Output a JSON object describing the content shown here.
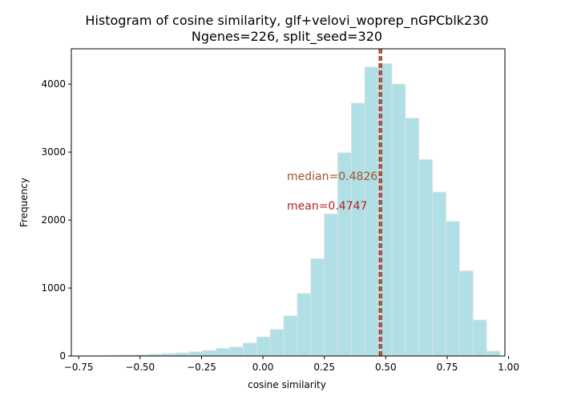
{
  "chart_data": {
    "type": "bar",
    "title": "Histogram of cosine similarity, glf+velovi_woprep_nGPCblk230",
    "subtitle": "Ngenes=226, split_seed=320",
    "xlabel": "cosine similarity",
    "ylabel": "Frequency",
    "xlim": [
      -0.78,
      0.985
    ],
    "ylim": [
      0,
      4520
    ],
    "x_ticks": [
      -0.75,
      -0.5,
      -0.25,
      0.0,
      0.25,
      0.5,
      0.75,
      1.0
    ],
    "x_tick_labels": [
      "−0.75",
      "−0.50",
      "−0.25",
      "0.00",
      "0.25",
      "0.50",
      "0.75",
      "1.00"
    ],
    "y_ticks": [
      0,
      1000,
      2000,
      3000,
      4000
    ],
    "y_tick_labels": [
      "0",
      "1000",
      "2000",
      "3000",
      "4000"
    ],
    "bins": [
      {
        "x0": -0.74,
        "x1": -0.685,
        "value": 3
      },
      {
        "x0": -0.685,
        "x1": -0.63,
        "value": 5
      },
      {
        "x0": -0.63,
        "x1": -0.575,
        "value": 8
      },
      {
        "x0": -0.575,
        "x1": -0.52,
        "value": 12
      },
      {
        "x0": -0.52,
        "x1": -0.465,
        "value": 18
      },
      {
        "x0": -0.465,
        "x1": -0.41,
        "value": 25
      },
      {
        "x0": -0.41,
        "x1": -0.355,
        "value": 35
      },
      {
        "x0": -0.355,
        "x1": -0.3,
        "value": 45
      },
      {
        "x0": -0.3,
        "x1": -0.245,
        "value": 60
      },
      {
        "x0": -0.245,
        "x1": -0.19,
        "value": 80
      },
      {
        "x0": -0.19,
        "x1": -0.135,
        "value": 110
      },
      {
        "x0": -0.135,
        "x1": -0.08,
        "value": 130
      },
      {
        "x0": -0.08,
        "x1": -0.025,
        "value": 190
      },
      {
        "x0": -0.025,
        "x1": 0.03,
        "value": 280
      },
      {
        "x0": 0.03,
        "x1": 0.085,
        "value": 390
      },
      {
        "x0": 0.085,
        "x1": 0.14,
        "value": 590
      },
      {
        "x0": 0.14,
        "x1": 0.195,
        "value": 920
      },
      {
        "x0": 0.195,
        "x1": 0.25,
        "value": 1430
      },
      {
        "x0": 0.25,
        "x1": 0.305,
        "value": 2090
      },
      {
        "x0": 0.305,
        "x1": 0.36,
        "value": 2990
      },
      {
        "x0": 0.36,
        "x1": 0.415,
        "value": 3720
      },
      {
        "x0": 0.415,
        "x1": 0.47,
        "value": 4250
      },
      {
        "x0": 0.47,
        "x1": 0.525,
        "value": 4300
      },
      {
        "x0": 0.525,
        "x1": 0.58,
        "value": 4000
      },
      {
        "x0": 0.58,
        "x1": 0.635,
        "value": 3500
      },
      {
        "x0": 0.635,
        "x1": 0.69,
        "value": 2890
      },
      {
        "x0": 0.69,
        "x1": 0.745,
        "value": 2410
      },
      {
        "x0": 0.745,
        "x1": 0.8,
        "value": 1980
      },
      {
        "x0": 0.8,
        "x1": 0.855,
        "value": 1250
      },
      {
        "x0": 0.855,
        "x1": 0.91,
        "value": 530
      },
      {
        "x0": 0.91,
        "x1": 0.965,
        "value": 70
      }
    ],
    "bar_color": "#b0dfe5",
    "bar_edge_color": "#d6e3e6",
    "median": {
      "value": 0.4826,
      "label": "median=0.4826",
      "color": "#a0522d"
    },
    "mean": {
      "value": 0.4747,
      "label": "mean=0.4747",
      "color": "#b22222"
    },
    "grid": false,
    "legend": "none"
  }
}
